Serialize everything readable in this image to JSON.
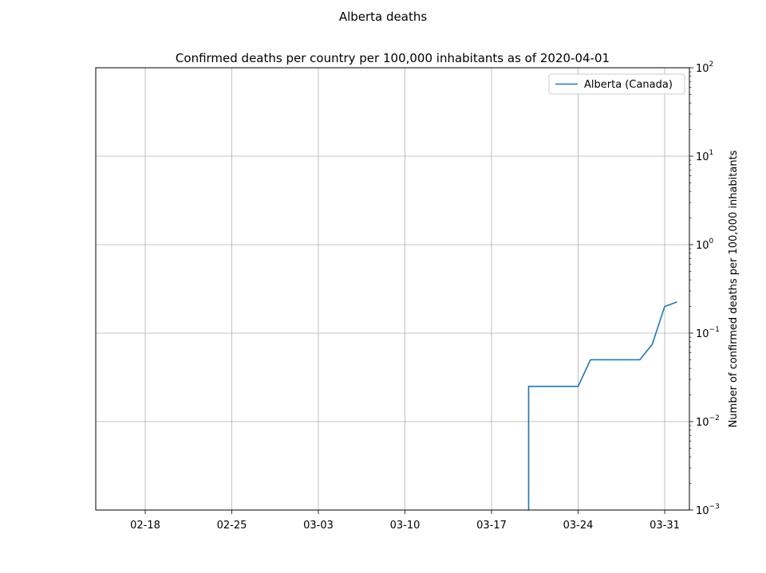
{
  "suptitle": "Alberta deaths",
  "chart_data": {
    "type": "line",
    "title": "Confirmed deaths per country per 100,000 inhabitants as of 2020-04-01",
    "xlabel": "",
    "ylabel": "Number of confirmed deaths per 100,000 inhabitants",
    "y_scale": "log",
    "y_axis_side": "right",
    "ylim": [
      0.001,
      100
    ],
    "xlim": [
      "2020-02-14",
      "2020-04-02"
    ],
    "x_tick_labels": [
      "02-18",
      "02-25",
      "03-03",
      "03-10",
      "03-17",
      "03-24",
      "03-31"
    ],
    "x_tick_dates": [
      "2020-02-18",
      "2020-02-25",
      "2020-03-03",
      "2020-03-10",
      "2020-03-17",
      "2020-03-24",
      "2020-03-31"
    ],
    "y_ticks": [
      {
        "value": 0.001,
        "base": "10",
        "exp": "−3"
      },
      {
        "value": 0.01,
        "base": "10",
        "exp": "−2"
      },
      {
        "value": 0.1,
        "base": "10",
        "exp": "−1"
      },
      {
        "value": 1,
        "base": "10",
        "exp": "0"
      },
      {
        "value": 10,
        "base": "10",
        "exp": "1"
      },
      {
        "value": 100,
        "base": "10",
        "exp": "2"
      }
    ],
    "grid": true,
    "legend_position": "top-right",
    "series": [
      {
        "name": "Alberta (Canada)",
        "color": "#1f77b4",
        "x": [
          "2020-03-20",
          "2020-03-20",
          "2020-03-24",
          "2020-03-25",
          "2020-03-29",
          "2020-03-30",
          "2020-03-31",
          "2020-04-01"
        ],
        "y": [
          0.001,
          0.025,
          0.025,
          0.05,
          0.05,
          0.075,
          0.2,
          0.225
        ]
      }
    ]
  }
}
